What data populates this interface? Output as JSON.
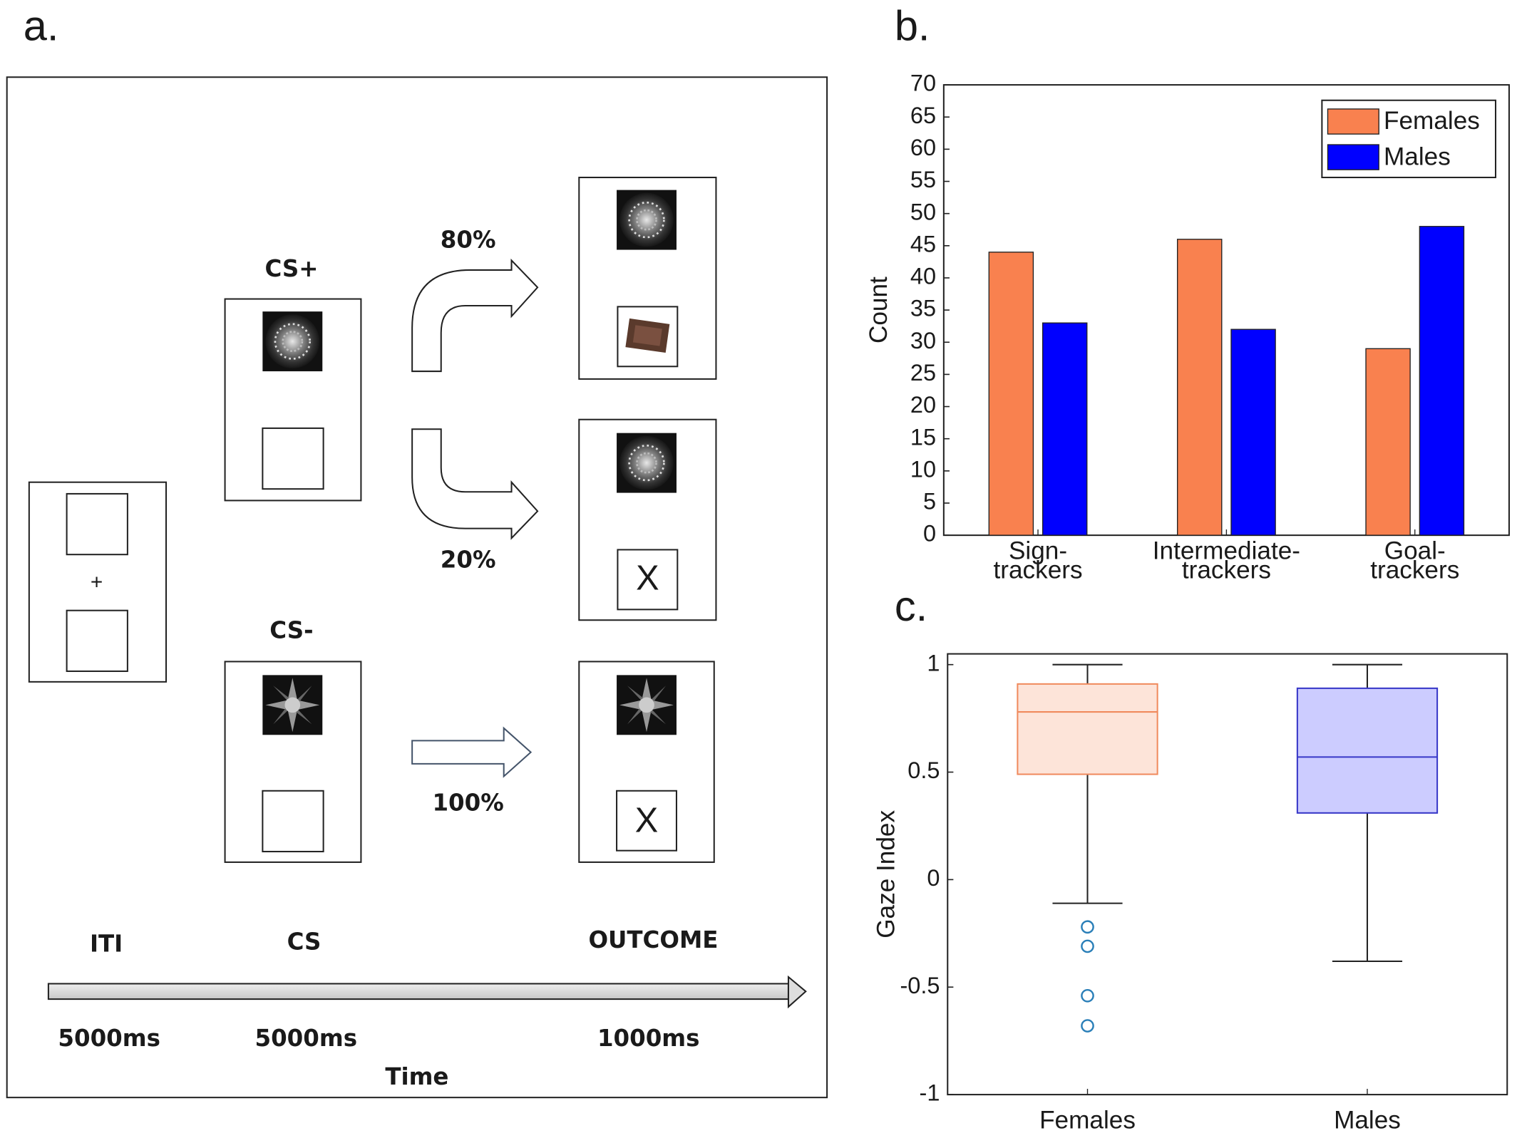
{
  "panel_labels": [
    "a.",
    "b.",
    "c."
  ],
  "diagram": {
    "cs_plus": "CS+",
    "cs_minus": "CS-",
    "fixation": "+",
    "p80": "80%",
    "p20": "20%",
    "p100": "100%",
    "no_reward": "X",
    "phases": [
      "ITI",
      "CS",
      "OUTCOME"
    ],
    "durations": [
      "5000ms",
      "5000ms",
      "1000ms"
    ],
    "time_label": "Time"
  },
  "chart_data": [
    {
      "type": "bar",
      "categories": [
        "Sign-trackers",
        "Intermediate-trackers",
        "Goal-trackers"
      ],
      "series": [
        {
          "name": "Females",
          "color": "#f9814f",
          "values": [
            44,
            46,
            29
          ]
        },
        {
          "name": "Males",
          "color": "#0000ff",
          "values": [
            33,
            32,
            48
          ]
        }
      ],
      "y_label": "Count",
      "ylim": [
        0,
        70
      ],
      "yticks": [
        0,
        5,
        10,
        15,
        20,
        25,
        30,
        35,
        40,
        45,
        50,
        55,
        60,
        65,
        70
      ],
      "legend": "upper right"
    },
    {
      "type": "box",
      "categories": [
        "Females",
        "Males"
      ],
      "colors": [
        "#f08a5d",
        "#3737c8"
      ],
      "fills": [
        "#fde4d9",
        "#ccccff"
      ],
      "outlier_color": "#2a7fb8",
      "boxes": [
        {
          "whisker_low": -0.11,
          "q1": 0.49,
          "median": 0.78,
          "q3": 0.91,
          "whisker_high": 1,
          "outliers": [
            -0.22,
            -0.31,
            -0.54,
            -0.68
          ]
        },
        {
          "whisker_low": -0.38,
          "q1": 0.31,
          "median": 0.57,
          "q3": 0.89,
          "whisker_high": 1,
          "outliers": []
        }
      ],
      "y_label": "Gaze Index",
      "ylim": [
        -1,
        1.05
      ],
      "yticks": [
        -1,
        -0.5,
        0,
        0.5,
        1
      ]
    }
  ]
}
